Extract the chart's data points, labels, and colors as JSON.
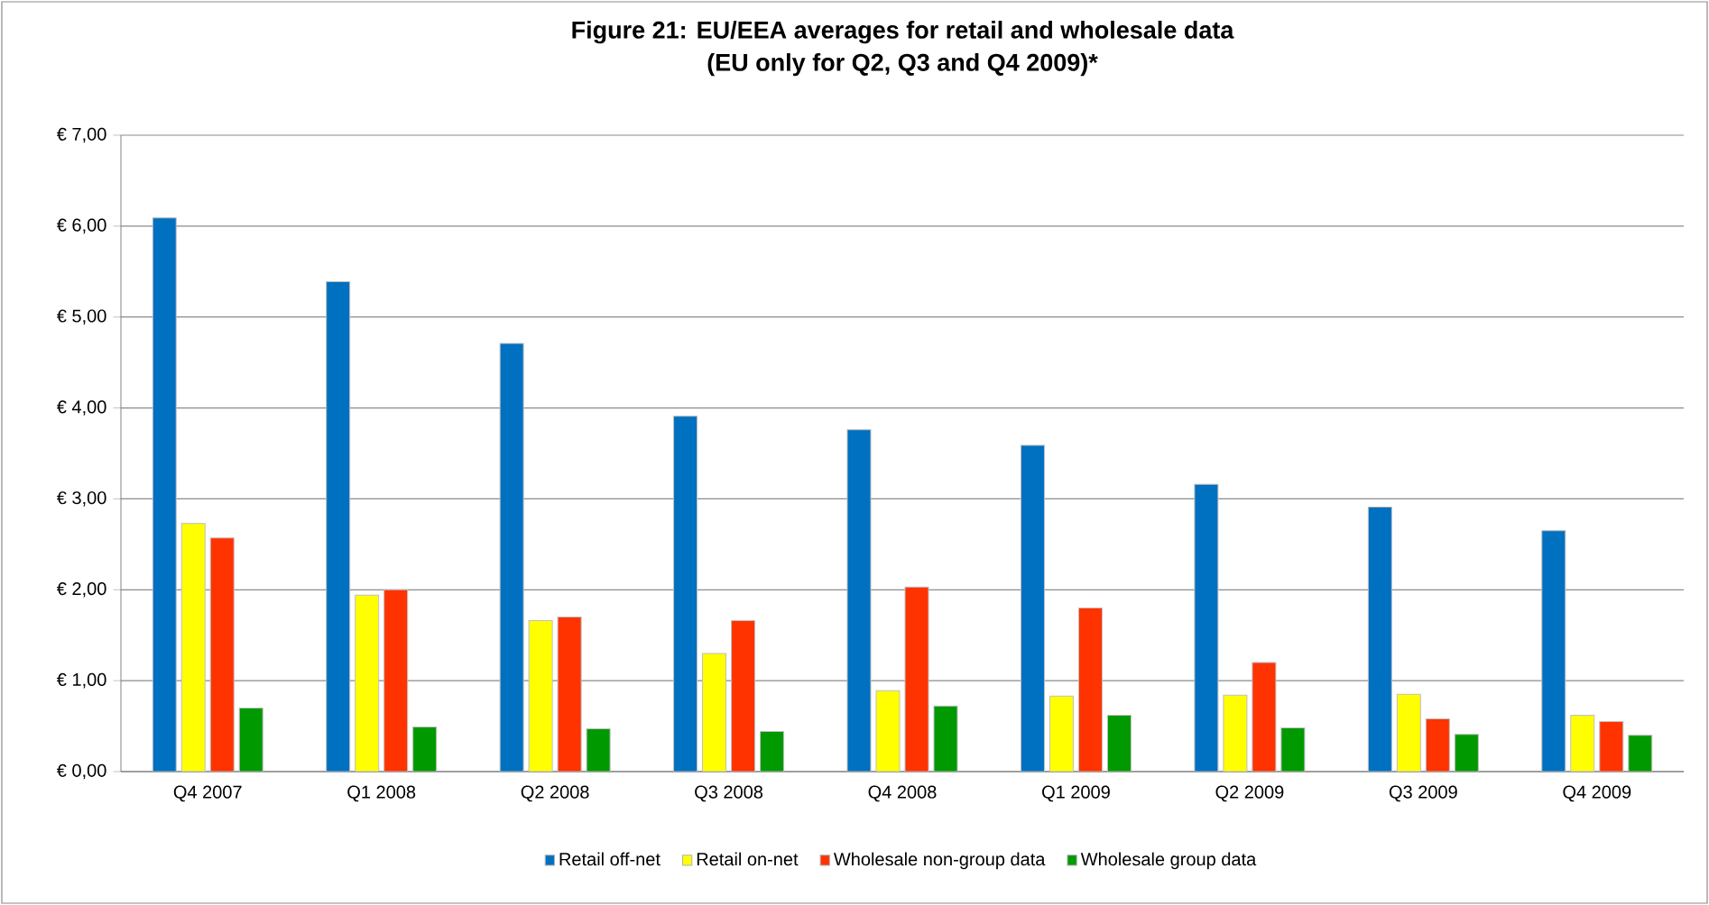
{
  "chart_data": {
    "type": "bar",
    "title": "Figure 21: EU/EEA averages for retail and wholesale data",
    "subtitle": "(EU only for Q2, Q3 and Q4 2009)*",
    "categories": [
      "Q4 2007",
      "Q1 2008",
      "Q2 2008",
      "Q3 2008",
      "Q4 2008",
      "Q1 2009",
      "Q2 2009",
      "Q3 2009",
      "Q4 2009"
    ],
    "series": [
      {
        "name": "Retail off-net",
        "color": "#0070c0",
        "values": [
          6.09,
          5.39,
          4.71,
          3.91,
          3.76,
          3.59,
          3.16,
          2.91,
          2.65
        ]
      },
      {
        "name": "Retail on-net",
        "color": "#ffff00",
        "values": [
          2.73,
          1.94,
          1.66,
          1.3,
          0.89,
          0.83,
          0.84,
          0.85,
          0.62
        ]
      },
      {
        "name": "Wholesale non-group data",
        "color": "#ff3300",
        "values": [
          2.57,
          2.0,
          1.7,
          1.66,
          2.03,
          1.8,
          1.2,
          0.58,
          0.55
        ]
      },
      {
        "name": "Wholesale group data",
        "color": "#009900",
        "values": [
          0.7,
          0.49,
          0.47,
          0.44,
          0.72,
          0.62,
          0.48,
          0.41,
          0.4
        ]
      }
    ],
    "ylim": [
      0,
      7
    ],
    "yticks": [
      {
        "value": 0,
        "label": "€ 0,00"
      },
      {
        "value": 1,
        "label": "€ 1,00"
      },
      {
        "value": 2,
        "label": "€ 2,00"
      },
      {
        "value": 3,
        "label": "€ 3,00"
      },
      {
        "value": 4,
        "label": "€ 4,00"
      },
      {
        "value": 5,
        "label": "€ 5,00"
      },
      {
        "value": 6,
        "label": "€ 6,00"
      },
      {
        "value": 7,
        "label": "€ 7,00"
      }
    ],
    "grid": "y",
    "legend": "bottom"
  }
}
